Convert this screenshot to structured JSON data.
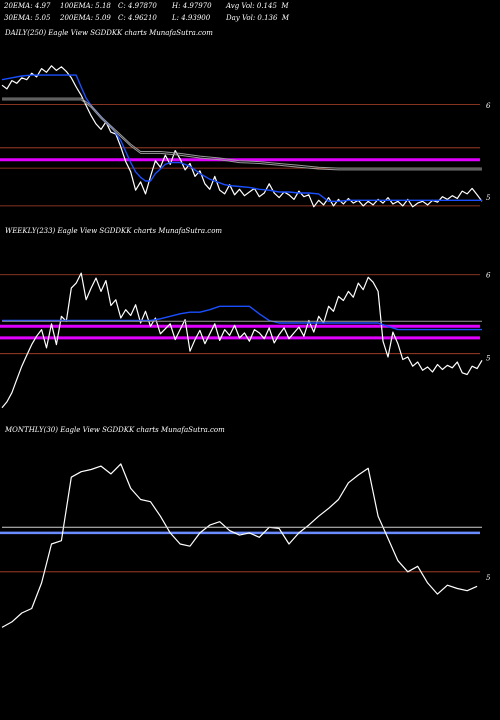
{
  "header": {
    "row1": [
      {
        "text": "20EMA: 4.97"
      },
      {
        "text": "100EMA: 5.18"
      },
      {
        "text": "C: 4.97870"
      },
      {
        "text": "H: 4.97970"
      },
      {
        "text": "Avg Vol: 0.145  M"
      }
    ],
    "row2": [
      {
        "text": "30EMA: 5.05"
      },
      {
        "text": "200EMA: 5.09"
      },
      {
        "text": "C: 4.96210"
      },
      {
        "text": "L: 4.93900"
      },
      {
        "text": "Day Vol: 0.136  M"
      }
    ]
  },
  "colors": {
    "background": "#000000",
    "price": "#ffffff",
    "ema_fast": "#1a4fff",
    "ema_slow": "#9a9a9a",
    "support": "#d0d0d0",
    "magenta_band": "#e000ff",
    "level": "#b5452a",
    "monthly_blue": "#6b8cff"
  },
  "chart_data": [
    {
      "id": "daily",
      "type": "line",
      "panel_label": "DAILY(250) Eagle   View  SGDDKK charts MunafaSutra.com",
      "ylim": [
        4.8,
        6.45
      ],
      "y_ticks": [
        {
          "label": "6",
          "value": 6.0
        },
        {
          "label": "5",
          "value": 5.0
        }
      ],
      "levels": [
        {
          "kind": "level",
          "value": 6.01
        },
        {
          "kind": "level",
          "value": 5.54
        },
        {
          "kind": "magenta",
          "value": 5.41
        },
        {
          "kind": "level",
          "value": 5.32
        },
        {
          "kind": "level",
          "value": 4.91
        }
      ],
      "series": [
        {
          "role": "price",
          "x": [
            0,
            5,
            10,
            15,
            20,
            25,
            30,
            35,
            40,
            45,
            50,
            55,
            60,
            65,
            70,
            75,
            80,
            85,
            90,
            95,
            100,
            105,
            110,
            115,
            120,
            125,
            130,
            135,
            140,
            145,
            150,
            155,
            160,
            165,
            170,
            175,
            180,
            185,
            190,
            195,
            200,
            205,
            210,
            215,
            220,
            225,
            230,
            235,
            240,
            245,
            250,
            255,
            260,
            265,
            270,
            275,
            280,
            285,
            290,
            295,
            300,
            305,
            310,
            315,
            320,
            325,
            330,
            335,
            340,
            345,
            350,
            355,
            360,
            365,
            370,
            375,
            380,
            385,
            390,
            395,
            400,
            405,
            410,
            415,
            420,
            425,
            430,
            435,
            440,
            445,
            450,
            455,
            460,
            465,
            470,
            475,
            480,
            485
          ],
          "y": [
            6.22,
            6.18,
            6.27,
            6.24,
            6.3,
            6.28,
            6.35,
            6.31,
            6.4,
            6.36,
            6.43,
            6.38,
            6.42,
            6.37,
            6.3,
            6.2,
            6.11,
            6.0,
            5.89,
            5.8,
            5.74,
            5.82,
            5.71,
            5.69,
            5.55,
            5.39,
            5.28,
            5.08,
            5.17,
            5.04,
            5.23,
            5.4,
            5.33,
            5.46,
            5.36,
            5.51,
            5.42,
            5.3,
            5.37,
            5.23,
            5.29,
            5.15,
            5.09,
            5.23,
            5.08,
            5.04,
            5.14,
            5.03,
            5.09,
            5.02,
            5.06,
            5.1,
            5.01,
            5.05,
            5.15,
            5.05,
            5.0,
            5.06,
            5.03,
            4.98,
            5.07,
            5.01,
            5.03,
            4.9,
            4.97,
            4.92,
            5.0,
            4.91,
            4.98,
            4.93,
            4.99,
            4.94,
            4.97,
            4.91,
            4.96,
            4.92,
            4.98,
            4.94,
            5.0,
            4.93,
            4.96,
            4.91,
            4.98,
            4.9,
            4.94,
            4.96,
            4.92,
            4.97,
            4.95,
            5.01,
            4.98,
            5.02,
            4.99,
            5.07,
            5.04,
            5.1,
            5.03,
            4.96
          ]
        },
        {
          "role": "ema_fast",
          "x": [
            0,
            10,
            20,
            30,
            40,
            50,
            60,
            70,
            75,
            80,
            85,
            90,
            95,
            100,
            105,
            110,
            115,
            120,
            125,
            130,
            135,
            140,
            145,
            150,
            155,
            160,
            165,
            170,
            175,
            180,
            185,
            190,
            195,
            200,
            205,
            210,
            215,
            220,
            225,
            230,
            240,
            250,
            260,
            270,
            280,
            290,
            300,
            310,
            320,
            330,
            340,
            350,
            360,
            370,
            380,
            390,
            400,
            410,
            420,
            430,
            440,
            450,
            460,
            470,
            480,
            485
          ],
          "y": [
            6.28,
            6.3,
            6.32,
            6.33,
            6.33,
            6.33,
            6.33,
            6.33,
            6.33,
            6.2,
            6.08,
            6.0,
            5.94,
            5.88,
            5.82,
            5.77,
            5.7,
            5.62,
            5.5,
            5.38,
            5.28,
            5.22,
            5.18,
            5.18,
            5.26,
            5.31,
            5.36,
            5.38,
            5.38,
            5.38,
            5.36,
            5.34,
            5.3,
            5.26,
            5.23,
            5.2,
            5.18,
            5.16,
            5.14,
            5.13,
            5.12,
            5.11,
            5.09,
            5.08,
            5.06,
            5.06,
            5.05,
            5.05,
            5.04,
            4.96,
            4.96,
            4.97,
            4.97,
            4.97,
            4.97,
            4.97,
            4.97,
            4.97,
            4.97,
            4.97,
            4.97,
            4.97,
            4.97,
            4.97,
            4.97,
            4.97
          ]
        },
        {
          "role": "ema_slow",
          "x": [
            0,
            20,
            40,
            60,
            80,
            90,
            100,
            110,
            120,
            130,
            140,
            160,
            180,
            200,
            220,
            240,
            260,
            280,
            300,
            320,
            340,
            360,
            380,
            400,
            420,
            440,
            460,
            480,
            485
          ],
          "y": [
            6.08,
            6.08,
            6.08,
            6.08,
            6.08,
            6.0,
            5.88,
            5.78,
            5.68,
            5.58,
            5.5,
            5.5,
            5.48,
            5.45,
            5.43,
            5.4,
            5.39,
            5.37,
            5.35,
            5.33,
            5.32,
            5.32,
            5.32,
            5.32,
            5.32,
            5.32,
            5.32,
            5.32,
            5.32
          ]
        },
        {
          "role": "ema_mid",
          "x": [
            0,
            20,
            40,
            60,
            80,
            90,
            100,
            110,
            120,
            130,
            140,
            160,
            180,
            200,
            220,
            240,
            260,
            280,
            300,
            320,
            340,
            360,
            380,
            400,
            420,
            440,
            460,
            480,
            485
          ],
          "y": [
            6.06,
            6.06,
            6.06,
            6.06,
            6.06,
            5.98,
            5.86,
            5.76,
            5.66,
            5.56,
            5.48,
            5.48,
            5.46,
            5.43,
            5.41,
            5.38,
            5.37,
            5.35,
            5.33,
            5.31,
            5.3,
            5.3,
            5.3,
            5.3,
            5.3,
            5.3,
            5.3,
            5.3,
            5.3
          ]
        }
      ]
    },
    {
      "id": "weekly",
      "type": "line",
      "panel_label": "WEEKLY(233) Eagle   View  SGDDKK charts MunafaSutra.com",
      "ylim": [
        4.3,
        6.25
      ],
      "y_ticks": [
        {
          "label": "6",
          "value": 6.0
        },
        {
          "label": "5",
          "value": 5.0
        }
      ],
      "levels": [
        {
          "kind": "level",
          "value": 6.0
        },
        {
          "kind": "magenta",
          "value": 5.38
        },
        {
          "kind": "magenta",
          "value": 5.24
        },
        {
          "kind": "level",
          "value": 5.05
        }
      ],
      "series": [
        {
          "role": "price",
          "x": [
            0,
            5,
            10,
            15,
            20,
            25,
            30,
            35,
            40,
            45,
            50,
            55,
            60,
            65,
            70,
            75,
            80,
            85,
            90,
            95,
            100,
            105,
            110,
            115,
            120,
            125,
            130,
            135,
            140,
            145,
            150,
            155,
            160,
            165,
            170,
            175,
            180,
            185,
            190,
            195,
            200,
            205,
            210,
            215,
            220,
            225,
            230,
            235,
            240,
            245,
            250,
            255,
            260,
            265,
            270,
            275,
            280,
            285,
            290,
            295,
            300,
            305,
            310,
            315,
            320,
            325,
            330,
            335,
            340,
            345,
            350,
            355,
            360,
            365,
            370,
            375,
            380,
            385,
            390,
            395,
            400,
            405,
            410,
            415,
            420,
            425,
            430,
            435,
            440,
            445,
            450,
            455,
            460,
            465,
            470,
            475,
            480,
            485
          ],
          "y": [
            4.4,
            4.47,
            4.58,
            4.74,
            4.9,
            5.03,
            5.16,
            5.26,
            5.34,
            5.12,
            5.41,
            5.16,
            5.5,
            5.44,
            5.84,
            5.9,
            6.02,
            5.7,
            5.84,
            5.96,
            5.8,
            5.93,
            5.63,
            5.7,
            5.48,
            5.58,
            5.51,
            5.64,
            5.42,
            5.56,
            5.38,
            5.48,
            5.29,
            5.35,
            5.41,
            5.22,
            5.34,
            5.46,
            5.08,
            5.22,
            5.33,
            5.17,
            5.29,
            5.41,
            5.21,
            5.34,
            5.27,
            5.39,
            5.24,
            5.3,
            5.2,
            5.34,
            5.3,
            5.23,
            5.36,
            5.18,
            5.28,
            5.36,
            5.23,
            5.3,
            5.37,
            5.26,
            5.45,
            5.31,
            5.5,
            5.42,
            5.62,
            5.56,
            5.74,
            5.69,
            5.8,
            5.73,
            5.9,
            5.82,
            5.97,
            5.91,
            5.8,
            5.2,
            5.01,
            5.31,
            5.17,
            4.98,
            5.01,
            4.9,
            4.95,
            4.85,
            4.89,
            4.83,
            4.92,
            4.86,
            4.91,
            4.88,
            4.95,
            4.82,
            4.8,
            4.9,
            4.87,
            4.97
          ]
        },
        {
          "role": "ema_fast",
          "x": [
            0,
            40,
            80,
            120,
            150,
            160,
            170,
            180,
            190,
            200,
            210,
            220,
            230,
            240,
            250,
            260,
            270,
            280,
            300,
            320,
            340,
            360,
            380,
            390,
            400,
            420,
            440,
            460,
            480,
            485
          ],
          "y": [
            5.45,
            5.45,
            5.45,
            5.45,
            5.45,
            5.47,
            5.5,
            5.53,
            5.55,
            5.55,
            5.58,
            5.62,
            5.62,
            5.62,
            5.62,
            5.53,
            5.45,
            5.42,
            5.42,
            5.42,
            5.42,
            5.42,
            5.42,
            5.38,
            5.34,
            5.34,
            5.34,
            5.34,
            5.34,
            5.34
          ]
        },
        {
          "role": "ema_slow",
          "x": [
            0,
            40,
            80,
            120,
            160,
            200,
            240,
            280,
            320,
            360,
            400,
            440,
            485
          ],
          "y": [
            5.44,
            5.44,
            5.44,
            5.44,
            5.44,
            5.44,
            5.44,
            5.44,
            5.44,
            5.44,
            5.44,
            5.44,
            5.44
          ]
        }
      ]
    },
    {
      "id": "monthly",
      "type": "line",
      "panel_label": "MONTHLY(30) Eagle   View  SGDDKK charts MunafaSutra.com",
      "ylim": [
        4.5,
        6.1
      ],
      "y_ticks": [
        {
          "label": "5",
          "value": 5.0
        }
      ],
      "levels": [
        {
          "kind": "level",
          "value": 5.05
        },
        {
          "kind": "monthly_blue",
          "value": 5.4
        }
      ],
      "series": [
        {
          "role": "price",
          "x": [
            0,
            10,
            20,
            30,
            40,
            50,
            60,
            70,
            80,
            90,
            100,
            110,
            120,
            130,
            140,
            150,
            160,
            170,
            180,
            190,
            200,
            210,
            220,
            230,
            240,
            250,
            260,
            270,
            280,
            290,
            300,
            310,
            320,
            330,
            340,
            350,
            360,
            370,
            380,
            390,
            400,
            410,
            420,
            430,
            440,
            450,
            460,
            470,
            480
          ],
          "y": [
            4.55,
            4.6,
            4.68,
            4.72,
            4.95,
            5.3,
            5.33,
            5.9,
            5.95,
            5.97,
            6.0,
            5.93,
            6.02,
            5.8,
            5.7,
            5.68,
            5.55,
            5.4,
            5.3,
            5.28,
            5.4,
            5.47,
            5.5,
            5.42,
            5.38,
            5.4,
            5.36,
            5.45,
            5.44,
            5.3,
            5.4,
            5.47,
            5.55,
            5.62,
            5.7,
            5.85,
            5.92,
            5.98,
            5.55,
            5.35,
            5.15,
            5.05,
            5.1,
            4.95,
            4.85,
            4.93,
            4.9,
            4.88,
            4.92
          ]
        },
        {
          "role": "support",
          "x": [
            0,
            485
          ],
          "y": [
            5.45,
            5.45
          ]
        }
      ]
    }
  ]
}
